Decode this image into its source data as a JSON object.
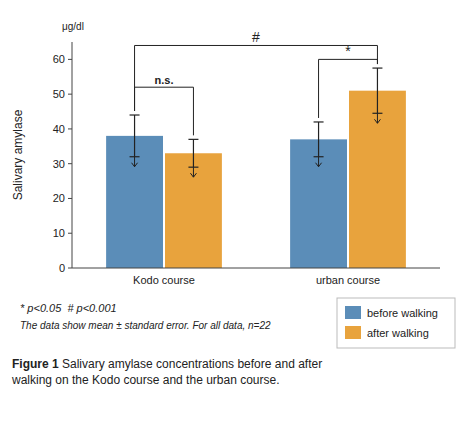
{
  "chart_data": {
    "type": "bar",
    "categories": [
      "Kodo course",
      "urban course"
    ],
    "series": [
      {
        "name": "before walking",
        "color": "#5b8db8",
        "values": [
          38.0,
          37.0
        ],
        "errors": [
          6.0,
          5.0
        ]
      },
      {
        "name": "after walking",
        "color": "#e8a33d",
        "values": [
          33.0,
          51.0
        ],
        "errors": [
          4.0,
          6.5
        ]
      }
    ],
    "y_label": "Salivary amylase",
    "unit_label": "μg/dl",
    "ylim": [
      0,
      65
    ],
    "yticks": [
      0,
      10,
      20,
      30,
      40,
      50,
      60
    ],
    "grid": false,
    "legend": "lower right",
    "annotations": [
      {
        "text": "n.s.",
        "y": 52.0,
        "from": [
          0,
          0
        ],
        "to": [
          0,
          1
        ]
      },
      {
        "text": "*",
        "y": 60.0,
        "from": [
          1,
          0
        ],
        "to": [
          1,
          1
        ]
      },
      {
        "text": "#",
        "y": 64.0,
        "from": [
          0,
          0
        ],
        "to": [
          1,
          1
        ]
      }
    ],
    "notes": [
      "* p<0.05  # p<0.001",
      "The data show mean ± standard error. For all data, n=22"
    ],
    "caption_label": "Figure 1",
    "caption": " Salivary amylase concentrations before and after\nwalking on the Kodo course and the urban course."
  }
}
